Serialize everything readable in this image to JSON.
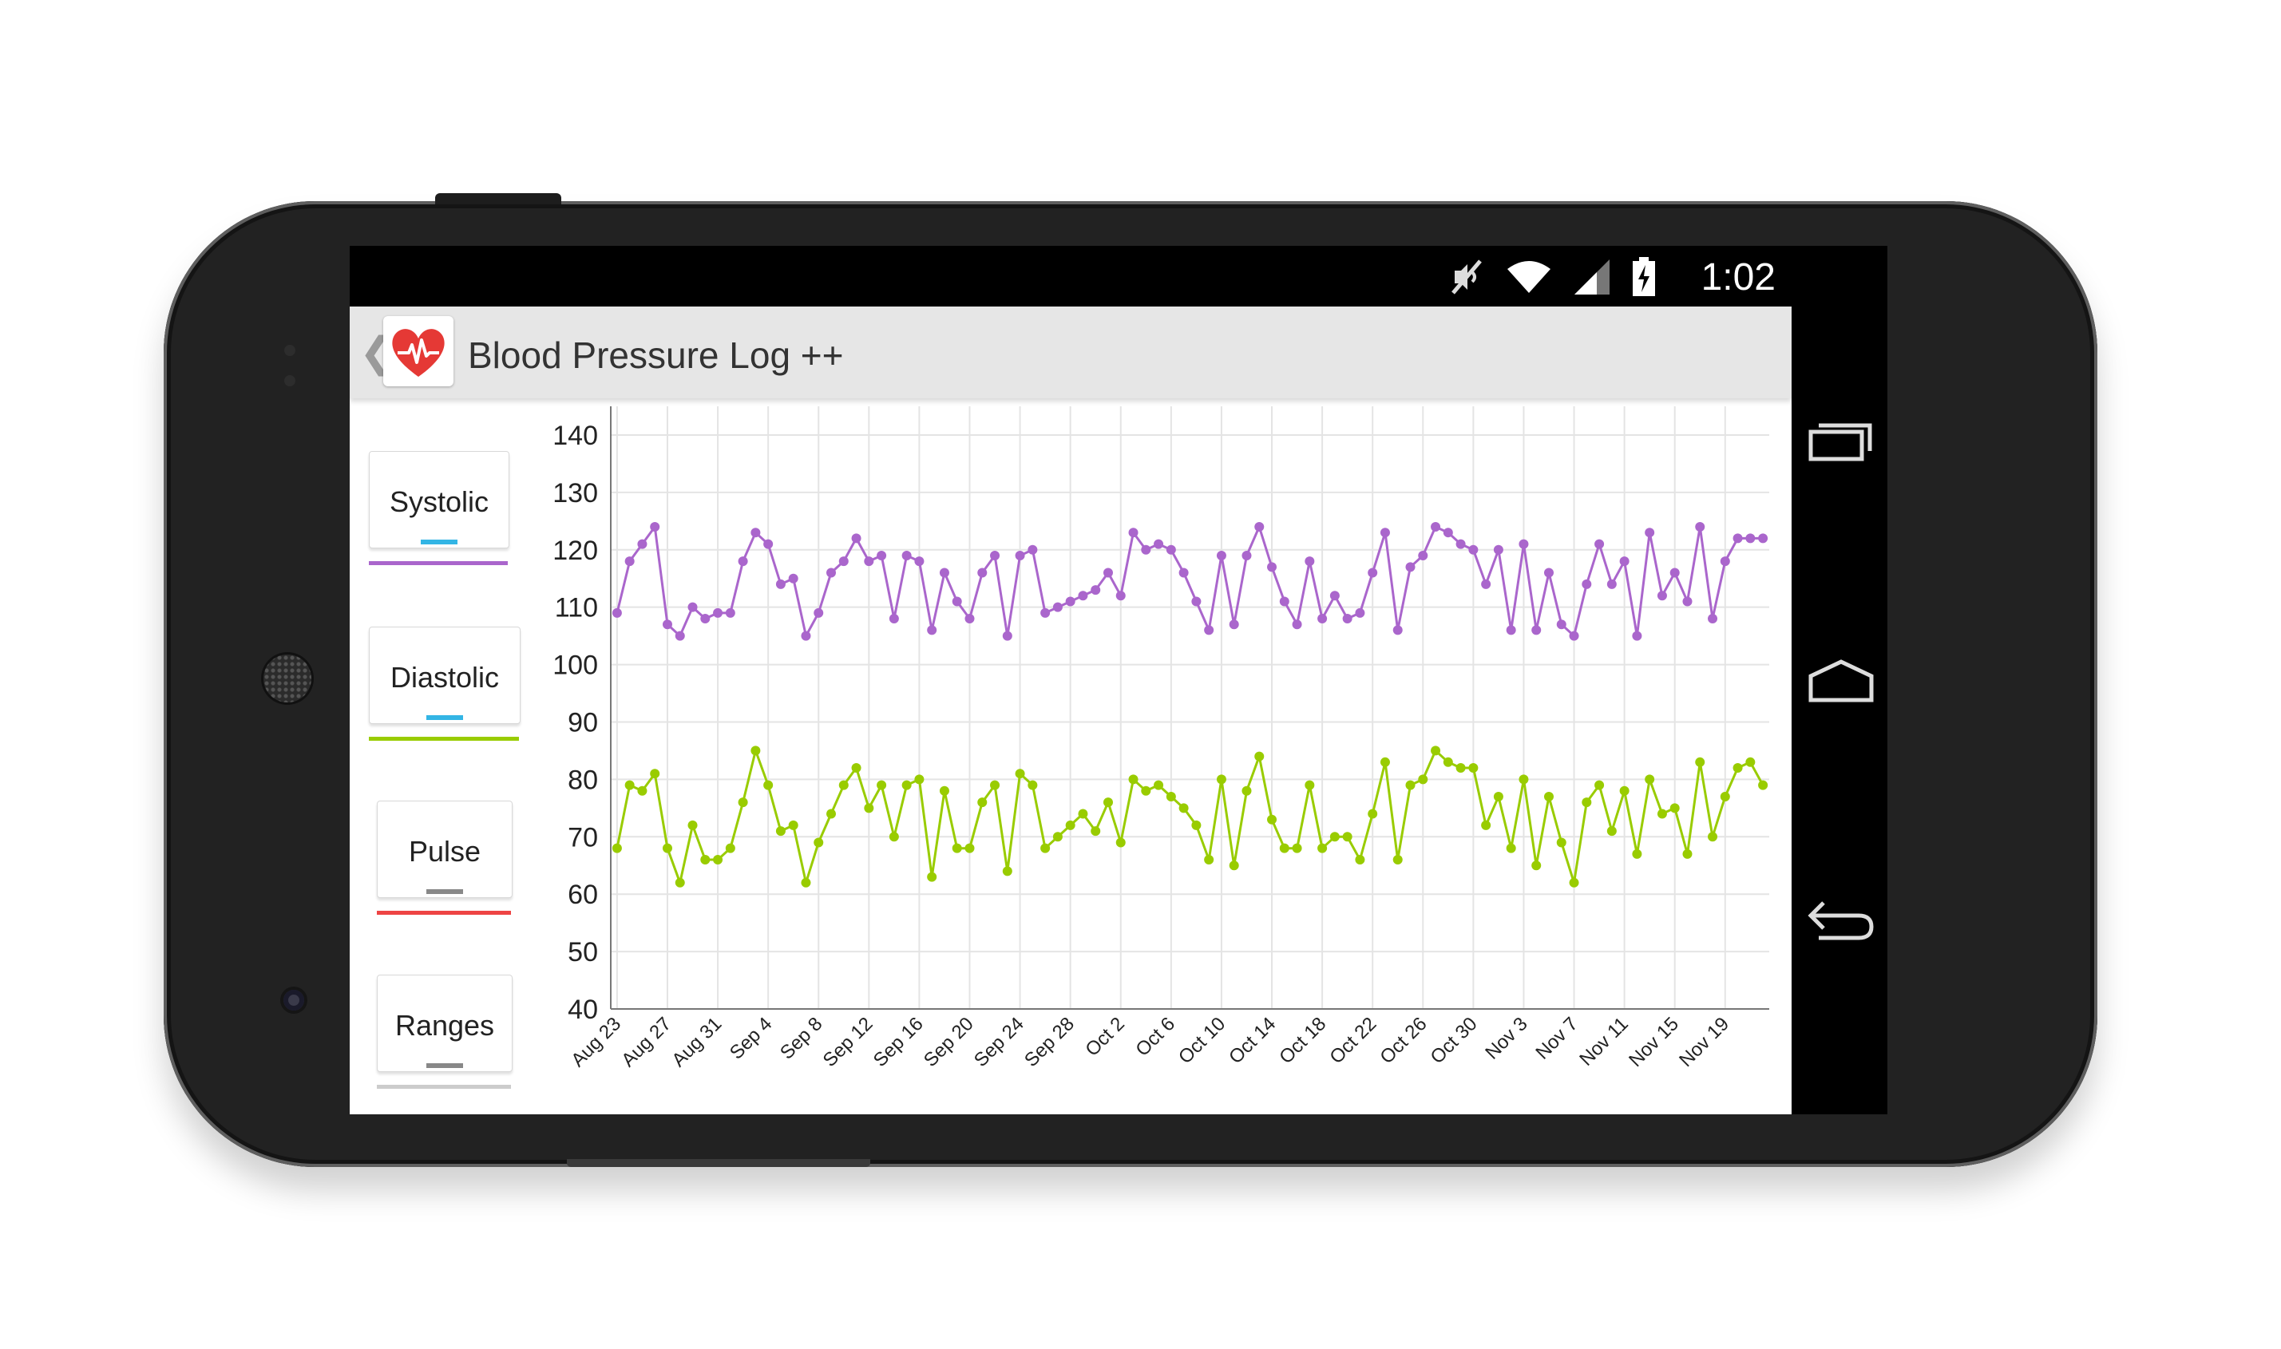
{
  "status_bar": {
    "time": "1:02",
    "icons": [
      "mute-icon",
      "wifi-icon",
      "signal-icon",
      "battery-charging-icon"
    ]
  },
  "action_bar": {
    "title": "Blood Pressure Log ++",
    "up_icon": "chevron-left-icon",
    "app_icon": "heart-pulse-icon"
  },
  "legend": {
    "items": [
      {
        "label": "Systolic",
        "dash_color": "#33b5e5",
        "line_color": "#aa66cc"
      },
      {
        "label": "Diastolic",
        "dash_color": "#33b5e5",
        "line_color": "#99cc00"
      },
      {
        "label": "Pulse",
        "dash_color": "#888888",
        "line_color": "#ee4444"
      },
      {
        "label": "Ranges",
        "dash_color": "#888888",
        "line_color": "#cccccc"
      }
    ]
  },
  "navigation_bar": {
    "buttons": [
      "recent-apps-icon",
      "home-icon",
      "back-icon"
    ]
  },
  "chart_data": {
    "type": "line",
    "title": "",
    "xlabel": "",
    "ylabel": "",
    "ylim": [
      40,
      145
    ],
    "yticks": [
      40,
      50,
      60,
      70,
      80,
      90,
      100,
      110,
      120,
      130,
      140
    ],
    "grid": true,
    "x_tick_labels": [
      "Aug 23",
      "Aug 27",
      "Aug 31",
      "Sep 4",
      "Sep 8",
      "Sep 12",
      "Sep 16",
      "Sep 20",
      "Sep 24",
      "Sep 28",
      "Oct 2",
      "Oct 6",
      "Oct 10",
      "Oct 14",
      "Oct 18",
      "Oct 22",
      "Oct 26",
      "Oct 30",
      "Nov 3",
      "Nov 7",
      "Nov 11",
      "Nov 15",
      "Nov 19"
    ],
    "series": [
      {
        "name": "Systolic",
        "color": "#aa66cc",
        "values": [
          109,
          118,
          121,
          124,
          107,
          105,
          110,
          108,
          109,
          109,
          118,
          123,
          121,
          114,
          115,
          105,
          109,
          116,
          118,
          122,
          118,
          119,
          108,
          119,
          118,
          106,
          116,
          111,
          108,
          116,
          119,
          105,
          119,
          120,
          109,
          110,
          111,
          112,
          113,
          116,
          112,
          123,
          120,
          121,
          120,
          116,
          111,
          106,
          119,
          107,
          119,
          124,
          117,
          111,
          107,
          118,
          108,
          112,
          108,
          109,
          116,
          123,
          106,
          117,
          119,
          124,
          123,
          121,
          120,
          114,
          120,
          106,
          121,
          106,
          116,
          107,
          105,
          114,
          121,
          114,
          118,
          105,
          123,
          112,
          116,
          111,
          124,
          108,
          118,
          122,
          122,
          122
        ]
      },
      {
        "name": "Diastolic",
        "color": "#99cc00",
        "values": [
          68,
          79,
          78,
          81,
          68,
          62,
          72,
          66,
          66,
          68,
          76,
          85,
          79,
          71,
          72,
          62,
          69,
          74,
          79,
          82,
          75,
          79,
          70,
          79,
          80,
          63,
          78,
          68,
          68,
          76,
          79,
          64,
          81,
          79,
          68,
          70,
          72,
          74,
          71,
          76,
          69,
          80,
          78,
          79,
          77,
          75,
          72,
          66,
          80,
          65,
          78,
          84,
          73,
          68,
          68,
          79,
          68,
          70,
          70,
          66,
          74,
          83,
          66,
          79,
          80,
          85,
          83,
          82,
          82,
          72,
          77,
          68,
          80,
          65,
          77,
          69,
          62,
          76,
          79,
          71,
          78,
          67,
          80,
          74,
          75,
          67,
          83,
          70,
          77,
          82,
          83,
          79
        ]
      }
    ]
  }
}
